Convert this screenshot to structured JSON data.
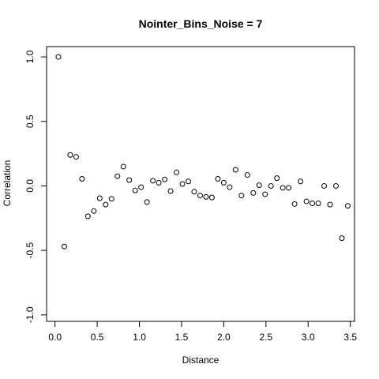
{
  "chart_data": {
    "type": "scatter",
    "title": "Nointer_Bins_Noise = 7",
    "xlabel": "Distance",
    "ylabel": "Correlation",
    "xlim": [
      -0.1,
      3.55
    ],
    "ylim": [
      -1.05,
      1.08
    ],
    "x_ticks": [
      0.0,
      0.5,
      1.0,
      1.5,
      2.0,
      2.5,
      3.0,
      3.5
    ],
    "x_tick_labels": [
      "0.0",
      "0.5",
      "1.0",
      "1.5",
      "2.0",
      "2.5",
      "3.0",
      "3.5"
    ],
    "y_ticks": [
      -1.0,
      -0.5,
      0.0,
      0.5,
      1.0
    ],
    "y_tick_labels": [
      "-1.0",
      "-0.5",
      "0.0",
      "0.5",
      "1.0"
    ],
    "grid": false,
    "legend": "none",
    "marker": "open-circle",
    "points": [
      {
        "x": 0.04,
        "y": 1.0
      },
      {
        "x": 0.11,
        "y": -0.47
      },
      {
        "x": 0.18,
        "y": 0.24
      },
      {
        "x": 0.25,
        "y": 0.225
      },
      {
        "x": 0.32,
        "y": 0.055
      },
      {
        "x": 0.39,
        "y": -0.235
      },
      {
        "x": 0.46,
        "y": -0.195
      },
      {
        "x": 0.53,
        "y": -0.095
      },
      {
        "x": 0.6,
        "y": -0.145
      },
      {
        "x": 0.67,
        "y": -0.1
      },
      {
        "x": 0.74,
        "y": 0.075
      },
      {
        "x": 0.81,
        "y": 0.15
      },
      {
        "x": 0.88,
        "y": 0.045
      },
      {
        "x": 0.95,
        "y": -0.035
      },
      {
        "x": 1.02,
        "y": -0.01
      },
      {
        "x": 1.09,
        "y": -0.125
      },
      {
        "x": 1.16,
        "y": 0.04
      },
      {
        "x": 1.23,
        "y": 0.025
      },
      {
        "x": 1.3,
        "y": 0.05
      },
      {
        "x": 1.37,
        "y": -0.04
      },
      {
        "x": 1.44,
        "y": 0.105
      },
      {
        "x": 1.51,
        "y": 0.015
      },
      {
        "x": 1.58,
        "y": 0.035
      },
      {
        "x": 1.65,
        "y": -0.045
      },
      {
        "x": 1.72,
        "y": -0.075
      },
      {
        "x": 1.79,
        "y": -0.085
      },
      {
        "x": 1.86,
        "y": -0.09
      },
      {
        "x": 1.93,
        "y": 0.055
      },
      {
        "x": 2.0,
        "y": 0.025
      },
      {
        "x": 2.07,
        "y": -0.01
      },
      {
        "x": 2.14,
        "y": 0.125
      },
      {
        "x": 2.21,
        "y": -0.075
      },
      {
        "x": 2.28,
        "y": 0.085
      },
      {
        "x": 2.35,
        "y": -0.055
      },
      {
        "x": 2.42,
        "y": 0.005
      },
      {
        "x": 2.49,
        "y": -0.065
      },
      {
        "x": 2.56,
        "y": 0.0
      },
      {
        "x": 2.63,
        "y": 0.06
      },
      {
        "x": 2.7,
        "y": -0.015
      },
      {
        "x": 2.77,
        "y": -0.015
      },
      {
        "x": 2.84,
        "y": -0.14
      },
      {
        "x": 2.91,
        "y": 0.035
      },
      {
        "x": 2.98,
        "y": -0.12
      },
      {
        "x": 3.05,
        "y": -0.135
      },
      {
        "x": 3.12,
        "y": -0.135
      },
      {
        "x": 3.19,
        "y": 0.0
      },
      {
        "x": 3.26,
        "y": -0.145
      },
      {
        "x": 3.33,
        "y": 0.0
      },
      {
        "x": 3.4,
        "y": -0.405
      },
      {
        "x": 3.47,
        "y": -0.155
      }
    ]
  }
}
